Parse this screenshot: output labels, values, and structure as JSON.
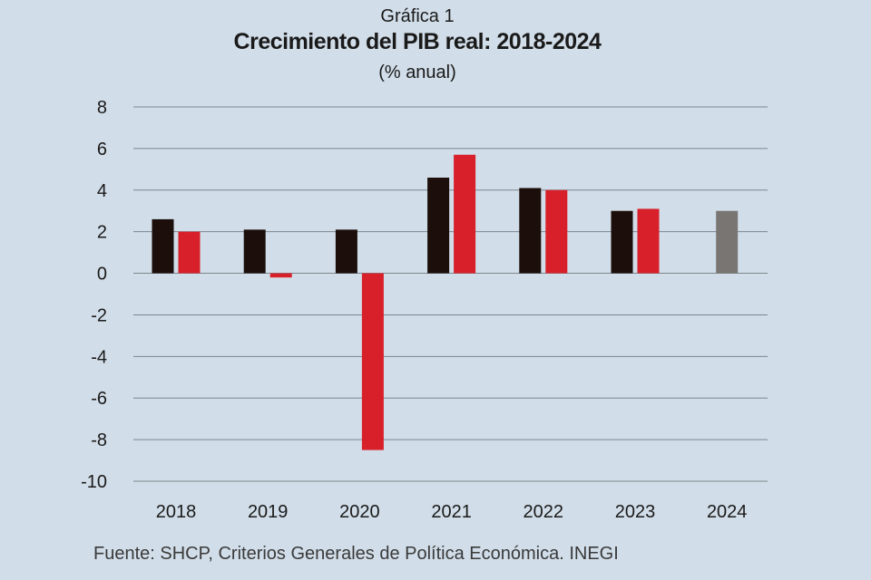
{
  "chart_data": {
    "type": "bar",
    "label": "Gráfica 1",
    "title": "Crecimiento del PIB real: 2018-2024",
    "subtitle": "(% anual)",
    "xlabel": "",
    "ylabel": "",
    "ylim": [
      -10,
      8
    ],
    "yticks": [
      "8",
      "6",
      "4",
      "2",
      "0",
      "-2",
      "-4",
      "-6",
      "-8",
      "-10"
    ],
    "ytick_values": [
      8,
      6,
      4,
      2,
      0,
      -2,
      -4,
      -6,
      -8,
      -10
    ],
    "grid": true,
    "categories": [
      "2018",
      "2019",
      "2020",
      "2021",
      "2022",
      "2023",
      "2024"
    ],
    "series": [
      {
        "name": "Serie negra",
        "color": "#1c0f0b",
        "values": [
          2.6,
          2.1,
          2.1,
          4.6,
          4.1,
          3.0,
          3.0
        ]
      },
      {
        "name": "Serie roja",
        "color": "#d8202a",
        "values": [
          2.0,
          -0.2,
          -8.5,
          5.7,
          4.0,
          3.1,
          null
        ]
      }
    ],
    "highlight": {
      "category": "2024",
      "color": "#787572"
    },
    "source": "Fuente: SHCP, Criterios Generales de Política Económica. INEGI"
  }
}
